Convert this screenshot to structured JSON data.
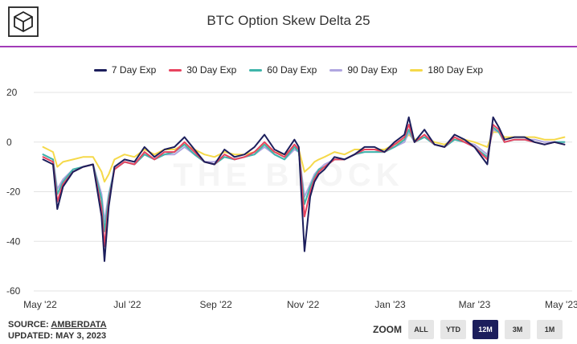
{
  "header": {
    "title": "BTC Option Skew Delta 25",
    "logo_icon": "the-block-cube-logo"
  },
  "watermark": "THE BLOCK",
  "footer": {
    "source_prefix": "SOURCE: ",
    "source_link": "AMBERDATA",
    "updated": "UPDATED: MAY 3, 2023"
  },
  "zoom": {
    "label": "ZOOM",
    "buttons": [
      "ALL",
      "YTD",
      "12M",
      "3M",
      "1M"
    ],
    "active": "12M"
  },
  "chart_data": {
    "type": "line",
    "title": "BTC Option Skew Delta 25",
    "xlabel": "",
    "ylabel": "",
    "x_tick_labels": [
      "May '22",
      "Jul '22",
      "Sep '22",
      "Nov '22",
      "Jan '23",
      "Mar '23",
      "May '23"
    ],
    "y_ticks": [
      20,
      0,
      -20,
      -40,
      -60
    ],
    "ylim": [
      -60,
      20
    ],
    "grid": "horizontal",
    "legend_position": "top",
    "x": [
      "2022-05-03",
      "2022-05-10",
      "2022-05-13",
      "2022-05-17",
      "2022-05-24",
      "2022-05-31",
      "2022-06-07",
      "2022-06-13",
      "2022-06-15",
      "2022-06-18",
      "2022-06-22",
      "2022-06-29",
      "2022-07-06",
      "2022-07-13",
      "2022-07-20",
      "2022-07-27",
      "2022-08-03",
      "2022-08-10",
      "2022-08-17",
      "2022-08-24",
      "2022-08-31",
      "2022-09-07",
      "2022-09-14",
      "2022-09-21",
      "2022-09-28",
      "2022-10-05",
      "2022-10-12",
      "2022-10-19",
      "2022-10-26",
      "2022-10-29",
      "2022-11-02",
      "2022-11-06",
      "2022-11-09",
      "2022-11-12",
      "2022-11-16",
      "2022-11-23",
      "2022-11-30",
      "2022-12-07",
      "2022-12-14",
      "2022-12-21",
      "2022-12-28",
      "2023-01-04",
      "2023-01-11",
      "2023-01-14",
      "2023-01-18",
      "2023-01-25",
      "2023-02-01",
      "2023-02-08",
      "2023-02-15",
      "2023-02-22",
      "2023-03-01",
      "2023-03-10",
      "2023-03-14",
      "2023-03-18",
      "2023-03-22",
      "2023-03-29",
      "2023-04-05",
      "2023-04-12",
      "2023-04-19",
      "2023-04-26",
      "2023-05-03"
    ],
    "series": [
      {
        "name": "7 Day Exp",
        "color": "#1c1e5c",
        "values": [
          -7,
          -9,
          -27,
          -18,
          -12,
          -10,
          -9,
          -30,
          -48,
          -26,
          -10,
          -7,
          -8,
          -2,
          -6,
          -3,
          -2,
          2,
          -3,
          -8,
          -9,
          -3,
          -6,
          -5,
          -2,
          3,
          -3,
          -5,
          1,
          -2,
          -44,
          -22,
          -16,
          -13,
          -11,
          -6,
          -7,
          -5,
          -2,
          -2,
          -4,
          0,
          3,
          10,
          0,
          5,
          -1,
          -2,
          3,
          1,
          -2,
          -9,
          10,
          6,
          1,
          2,
          2,
          0,
          -1,
          0,
          -1
        ]
      },
      {
        "name": "30 Day Exp",
        "color": "#e8435f",
        "values": [
          -6,
          -8,
          -24,
          -17,
          -12,
          -10,
          -9,
          -27,
          -42,
          -24,
          -11,
          -8,
          -9,
          -4,
          -7,
          -4,
          -4,
          0,
          -4,
          -8,
          -9,
          -5,
          -7,
          -6,
          -4,
          0,
          -4,
          -6,
          -1,
          -3,
          -30,
          -20,
          -15,
          -12,
          -10,
          -7,
          -7,
          -5,
          -3,
          -3,
          -4,
          -1,
          2,
          7,
          0,
          3,
          -1,
          -2,
          2,
          0,
          -2,
          -7,
          7,
          5,
          0,
          1,
          1,
          0,
          -1,
          0,
          -1
        ]
      },
      {
        "name": "60 Day Exp",
        "color": "#3fb5aa",
        "values": [
          -5,
          -7,
          -21,
          -16,
          -11,
          -10,
          -9,
          -23,
          -36,
          -22,
          -11,
          -8,
          -9,
          -5,
          -7,
          -5,
          -4,
          -1,
          -5,
          -8,
          -9,
          -6,
          -7,
          -6,
          -5,
          -1,
          -5,
          -7,
          -2,
          -4,
          -25,
          -18,
          -14,
          -11,
          -10,
          -7,
          -7,
          -5,
          -4,
          -4,
          -4,
          -2,
          1,
          5,
          0,
          2,
          -1,
          -2,
          1,
          0,
          -2,
          -6,
          6,
          4,
          0,
          1,
          1,
          0,
          -1,
          0,
          0
        ]
      },
      {
        "name": "90 Day Exp",
        "color": "#b0a6e0",
        "values": [
          -5,
          -7,
          -19,
          -15,
          -11,
          -10,
          -9,
          -21,
          -32,
          -21,
          -11,
          -8,
          -9,
          -5,
          -7,
          -5,
          -5,
          -2,
          -5,
          -8,
          -8,
          -6,
          -7,
          -6,
          -5,
          -2,
          -5,
          -7,
          -3,
          -4,
          -22,
          -17,
          -13,
          -11,
          -9,
          -7,
          -7,
          -5,
          -4,
          -4,
          -4,
          -2,
          0,
          4,
          0,
          2,
          -1,
          -2,
          1,
          0,
          -1,
          -5,
          5,
          4,
          0,
          1,
          1,
          1,
          0,
          0,
          0
        ]
      },
      {
        "name": "180 Day Exp",
        "color": "#f5d94a",
        "values": [
          -2,
          -4,
          -10,
          -8,
          -7,
          -6,
          -6,
          -12,
          -16,
          -13,
          -7,
          -5,
          -6,
          -3,
          -5,
          -3,
          -3,
          -1,
          -3,
          -5,
          -6,
          -4,
          -5,
          -5,
          -4,
          -1,
          -4,
          -5,
          -2,
          -3,
          -12,
          -10,
          -8,
          -7,
          -6,
          -4,
          -5,
          -3,
          -3,
          -3,
          -3,
          -1,
          1,
          3,
          1,
          2,
          0,
          -1,
          1,
          1,
          0,
          -2,
          4,
          4,
          2,
          2,
          2,
          2,
          1,
          1,
          2
        ]
      }
    ]
  }
}
